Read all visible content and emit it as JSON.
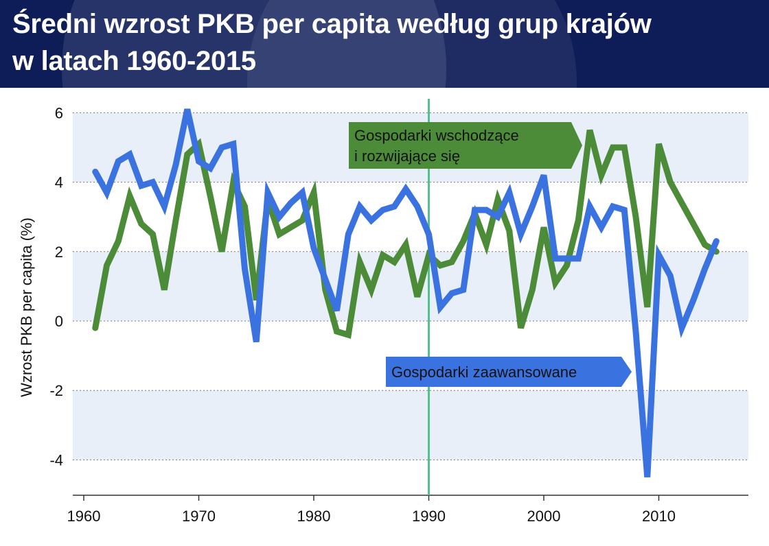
{
  "header": {
    "title_line1": "Średni wzrost PKB per capita według grup krajów",
    "title_line2": "w latach 1960-2015"
  },
  "chart_data": {
    "type": "line",
    "ylabel": "Wzrost PKB per capita (%)",
    "xlabel": "",
    "ylim": [
      -5,
      6.5
    ],
    "xlim": [
      1959,
      2017.5
    ],
    "yticks": [
      6,
      4,
      2,
      0,
      -2,
      -4
    ],
    "xticks": [
      1960,
      1970,
      1980,
      1990,
      2000,
      2010
    ],
    "ytick_labels": [
      "6",
      "4",
      "2",
      "0",
      "-2",
      "-4"
    ],
    "xtick_labels": [
      "1960",
      "1970",
      "1980",
      "1990",
      "2000",
      "2010"
    ],
    "grid": "horizontal dotted, alternating bands",
    "vline": {
      "x": 1990,
      "color": "#4fc48a"
    },
    "series": [
      {
        "name": "Gospodarki wschodzące i rozwijające się",
        "color": "#4c8c39",
        "x": [
          1961,
          1962,
          1963,
          1964,
          1965,
          1966,
          1967,
          1968,
          1969,
          1970,
          1971,
          1972,
          1973,
          1974,
          1975,
          1976,
          1977,
          1978,
          1979,
          1980,
          1981,
          1982,
          1983,
          1984,
          1985,
          1986,
          1987,
          1988,
          1989,
          1990,
          1991,
          1992,
          1993,
          1994,
          1995,
          1996,
          1997,
          1998,
          1999,
          2000,
          2001,
          2002,
          2003,
          2004,
          2005,
          2006,
          2007,
          2008,
          2009,
          2010,
          2011,
          2012,
          2013,
          2014,
          2015
        ],
        "values": [
          -0.2,
          1.6,
          2.3,
          3.6,
          2.8,
          2.5,
          0.9,
          2.9,
          4.8,
          5.1,
          3.6,
          2.0,
          4.0,
          3.3,
          0.6,
          3.5,
          2.5,
          2.7,
          2.9,
          3.7,
          0.9,
          -0.3,
          -0.4,
          1.7,
          0.9,
          1.9,
          1.7,
          2.2,
          0.7,
          1.9,
          1.6,
          1.7,
          2.3,
          3.1,
          2.2,
          3.5,
          2.6,
          -0.2,
          0.9,
          2.7,
          1.1,
          1.6,
          2.9,
          5.5,
          4.2,
          5.0,
          5.0,
          3.0,
          0.4,
          5.1,
          4.0,
          3.4,
          2.8,
          2.2,
          2.0
        ]
      },
      {
        "name": "Gospodarki zaawansowane",
        "color": "#3a73df",
        "x": [
          1961,
          1962,
          1963,
          1964,
          1965,
          1966,
          1967,
          1968,
          1969,
          1970,
          1971,
          1972,
          1973,
          1974,
          1975,
          1976,
          1977,
          1978,
          1979,
          1980,
          1981,
          1982,
          1983,
          1984,
          1985,
          1986,
          1987,
          1988,
          1989,
          1990,
          1991,
          1992,
          1993,
          1994,
          1995,
          1996,
          1997,
          1998,
          1999,
          2000,
          2001,
          2002,
          2003,
          2004,
          2005,
          2006,
          2007,
          2008,
          2009,
          2010,
          2011,
          2012,
          2013,
          2014,
          2015
        ],
        "values": [
          4.3,
          3.7,
          4.6,
          4.8,
          3.9,
          4.0,
          3.3,
          4.5,
          6.1,
          4.6,
          4.4,
          5.0,
          5.1,
          1.5,
          -0.6,
          3.7,
          3.0,
          3.4,
          3.7,
          2.1,
          1.2,
          0.3,
          2.5,
          3.3,
          2.9,
          3.2,
          3.3,
          3.8,
          3.3,
          2.5,
          0.4,
          0.8,
          0.9,
          3.2,
          3.2,
          3.0,
          3.7,
          2.5,
          3.3,
          4.2,
          1.8,
          1.8,
          1.8,
          3.3,
          2.7,
          3.3,
          3.2,
          -0.3,
          -4.5,
          1.9,
          1.3,
          -0.2,
          0.6,
          1.5,
          2.3
        ]
      }
    ],
    "annotations": [
      {
        "lines": [
          "Gospodarki wschodzące",
          "i rozwijające się"
        ],
        "color": "#4c8c39"
      },
      {
        "lines": [
          "Gospodarki zaawansowane"
        ],
        "color": "#3a73df"
      }
    ]
  }
}
